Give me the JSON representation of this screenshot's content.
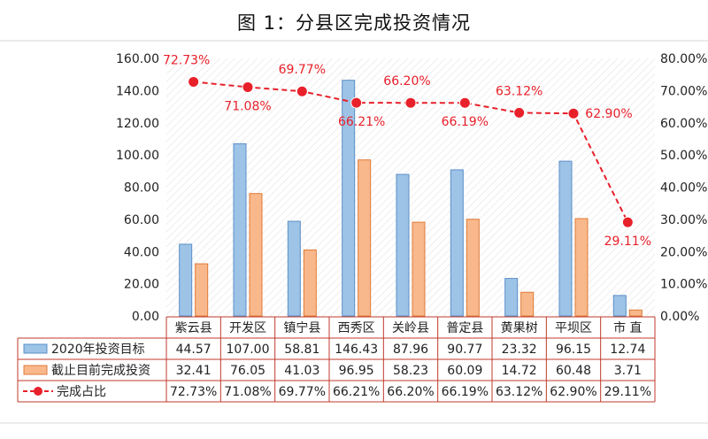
{
  "title": "图 1：分县区完成投资情况",
  "chart_data": {
    "type": "bar",
    "categories": [
      "紫云县",
      "开发区",
      "镇宁县",
      "西秀区",
      "关岭县",
      "普定县",
      "黄果树",
      "平坝区",
      "市 直"
    ],
    "series": [
      {
        "name": "2020年投资目标",
        "kind": "bar",
        "axis": "left",
        "color": "#9dc3e6",
        "values": [
          44.57,
          107.0,
          58.81,
          146.43,
          87.96,
          90.77,
          23.32,
          96.15,
          12.74
        ],
        "labels": [
          "44.57",
          "107.00",
          "58.81",
          "146.43",
          "87.96",
          "90.77",
          "23.32",
          "96.15",
          "12.74"
        ]
      },
      {
        "name": "截止目前完成投资",
        "kind": "bar",
        "axis": "left",
        "color": "#f8b88b",
        "values": [
          32.41,
          76.05,
          41.03,
          96.95,
          58.23,
          60.09,
          14.72,
          60.48,
          3.71
        ],
        "labels": [
          "32.41",
          "76.05",
          "41.03",
          "96.95",
          "58.23",
          "60.09",
          "14.72",
          "60.48",
          "3.71"
        ]
      },
      {
        "name": "完成占比",
        "kind": "line",
        "axis": "right",
        "color": "#e8202a",
        "values": [
          72.73,
          71.08,
          69.77,
          66.21,
          66.2,
          66.19,
          63.12,
          62.9,
          29.11
        ],
        "labels": [
          "72.73%",
          "71.08%",
          "69.77%",
          "66.21%",
          "66.20%",
          "66.19%",
          "63.12%",
          "62.90%",
          "29.11%"
        ]
      }
    ],
    "y_left": {
      "min": 0,
      "max": 160,
      "ticks": [
        "0.00",
        "20.00",
        "40.00",
        "60.00",
        "80.00",
        "100.00",
        "120.00",
        "140.00",
        "160.00"
      ]
    },
    "y_right": {
      "min": 0,
      "max": 80,
      "ticks": [
        "0.00%",
        "10.00%",
        "20.00%",
        "30.00%",
        "40.00%",
        "50.00%",
        "60.00%",
        "70.00%",
        "80.00%"
      ]
    },
    "line_labels": [
      "72.73%",
      "71.08%",
      "69.77%",
      "66.21%",
      "66.20%",
      "66.19%",
      "63.12%",
      "62.90%",
      "29.11%"
    ],
    "data_table": true,
    "legend": "in data table"
  }
}
